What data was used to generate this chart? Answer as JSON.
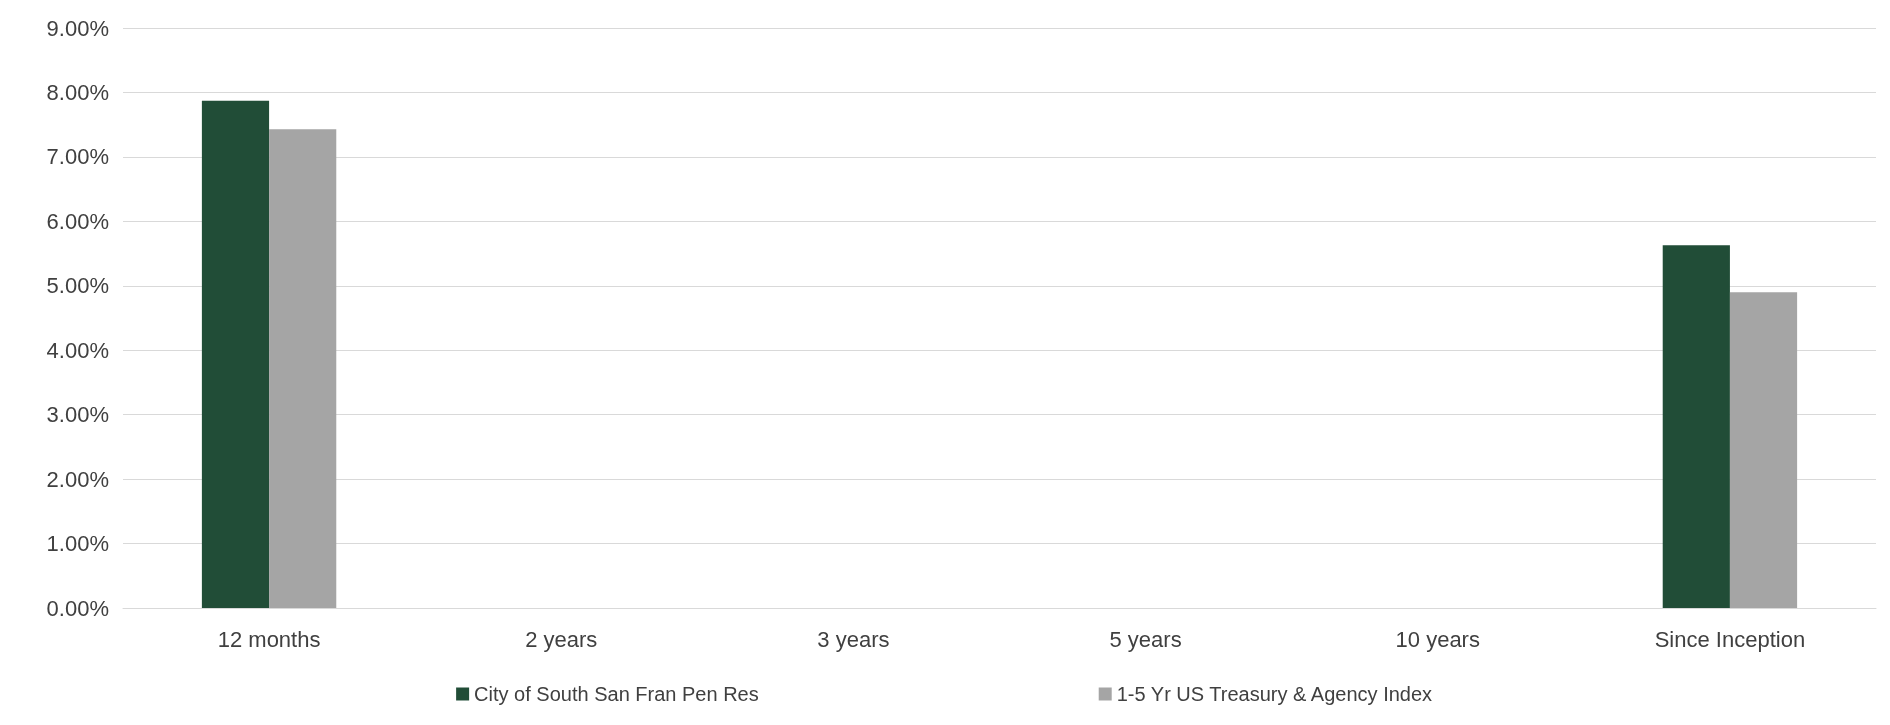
{
  "chart_data": {
    "type": "bar",
    "categories": [
      "12 months",
      "2 years",
      "3 years",
      "5 years",
      "10 years",
      "Since Inception"
    ],
    "series": [
      {
        "name": "City of South San Fran Pen Res",
        "color": "#214d37",
        "values": [
          7.87,
          null,
          null,
          null,
          null,
          5.63
        ]
      },
      {
        "name": "1-5 Yr US Treasury & Agency Index",
        "color": "#a5a5a5",
        "values": [
          7.43,
          null,
          null,
          null,
          null,
          4.9
        ]
      }
    ],
    "ylim": [
      0,
      9
    ],
    "yticks": [
      {
        "value": 0,
        "label": "0.00%"
      },
      {
        "value": 1,
        "label": "1.00%"
      },
      {
        "value": 2,
        "label": "2.00%"
      },
      {
        "value": 3,
        "label": "3.00%"
      },
      {
        "value": 4,
        "label": "4.00%"
      },
      {
        "value": 5,
        "label": "5.00%"
      },
      {
        "value": 6,
        "label": "6.00%"
      },
      {
        "value": 7,
        "label": "7.00%"
      },
      {
        "value": 8,
        "label": "8.00%"
      },
      {
        "value": 9,
        "label": "9.00%"
      }
    ],
    "grid": "y",
    "legend": "bottom"
  }
}
